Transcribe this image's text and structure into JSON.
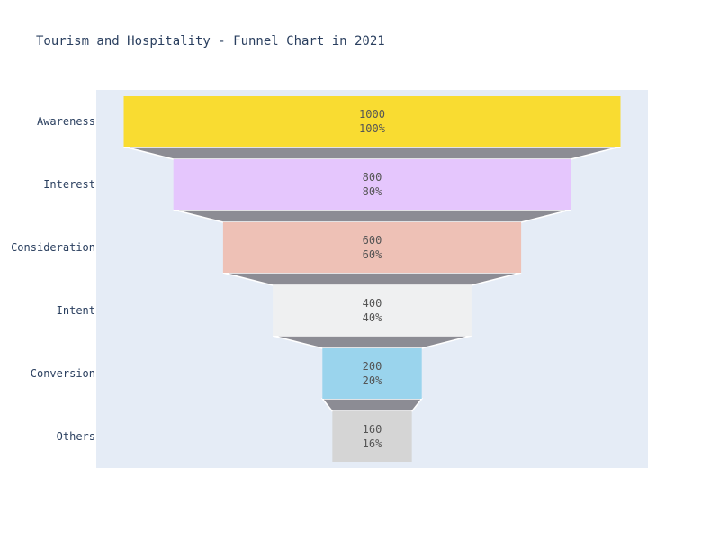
{
  "chart_data": {
    "type": "funnel",
    "title": "Tourism and Hospitality - Funnel Chart in 2021",
    "stages": [
      "Awareness",
      "Interest",
      "Consideration",
      "Intent",
      "Conversion",
      "Others"
    ],
    "values": [
      1000,
      800,
      600,
      400,
      200,
      160
    ],
    "percent_labels": [
      "100%",
      "80%",
      "60%",
      "40%",
      "20%",
      "16%"
    ],
    "colors": [
      "#f9dc31",
      "#e5c6fd",
      "#eec1b6",
      "#eff0f1",
      "#9ad4ed",
      "#d5d5d5"
    ],
    "connector_color": "#8c8c94",
    "plot_background": "#e5ecf6"
  }
}
